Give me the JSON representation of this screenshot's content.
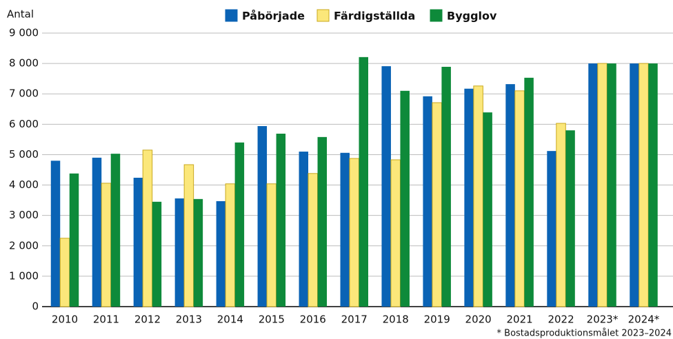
{
  "chart_data": {
    "type": "bar",
    "y_label": "Antal",
    "categories": [
      "2010",
      "2011",
      "2012",
      "2013",
      "2014",
      "2015",
      "2016",
      "2017",
      "2018",
      "2019",
      "2020",
      "2021",
      "2022",
      "2023*",
      "2024*"
    ],
    "series": [
      {
        "name": "Påbörjade",
        "color": "#0a63b5",
        "values": [
          4800,
          4900,
          4240,
          3560,
          3470,
          5940,
          5100,
          5060,
          7910,
          6920,
          7170,
          7320,
          5120,
          8000,
          8000
        ]
      },
      {
        "name": "Färdigställda",
        "color": "#fbe77a",
        "values": [
          2250,
          4060,
          5150,
          4670,
          4040,
          4040,
          4380,
          4875,
          4830,
          6710,
          7260,
          7100,
          6030,
          8000,
          8000
        ]
      },
      {
        "name": "Bygglov",
        "color": "#0e8a3a",
        "values": [
          4380,
          5030,
          3450,
          3540,
          5400,
          5690,
          5580,
          8210,
          7100,
          7890,
          6390,
          7530,
          5800,
          8000,
          8000
        ]
      }
    ],
    "ylim": [
      0,
      9000
    ],
    "yticks": [
      0,
      {
        "value": 1000,
        "label": "1 000"
      },
      {
        "value": 2000,
        "label": "2 000"
      },
      {
        "value": 3000,
        "label": "3 000"
      },
      {
        "value": 4000,
        "label": "4 000"
      },
      {
        "value": 5000,
        "label": "5 000"
      },
      {
        "value": 6000,
        "label": "6 000"
      },
      {
        "value": 7000,
        "label": "7 000"
      },
      {
        "value": 8000,
        "label": "8 000"
      },
      {
        "value": 9000,
        "label": "9 000"
      }
    ],
    "grid": true,
    "footnote": "* Bostadsproduktionsmålet 2023–2024"
  }
}
